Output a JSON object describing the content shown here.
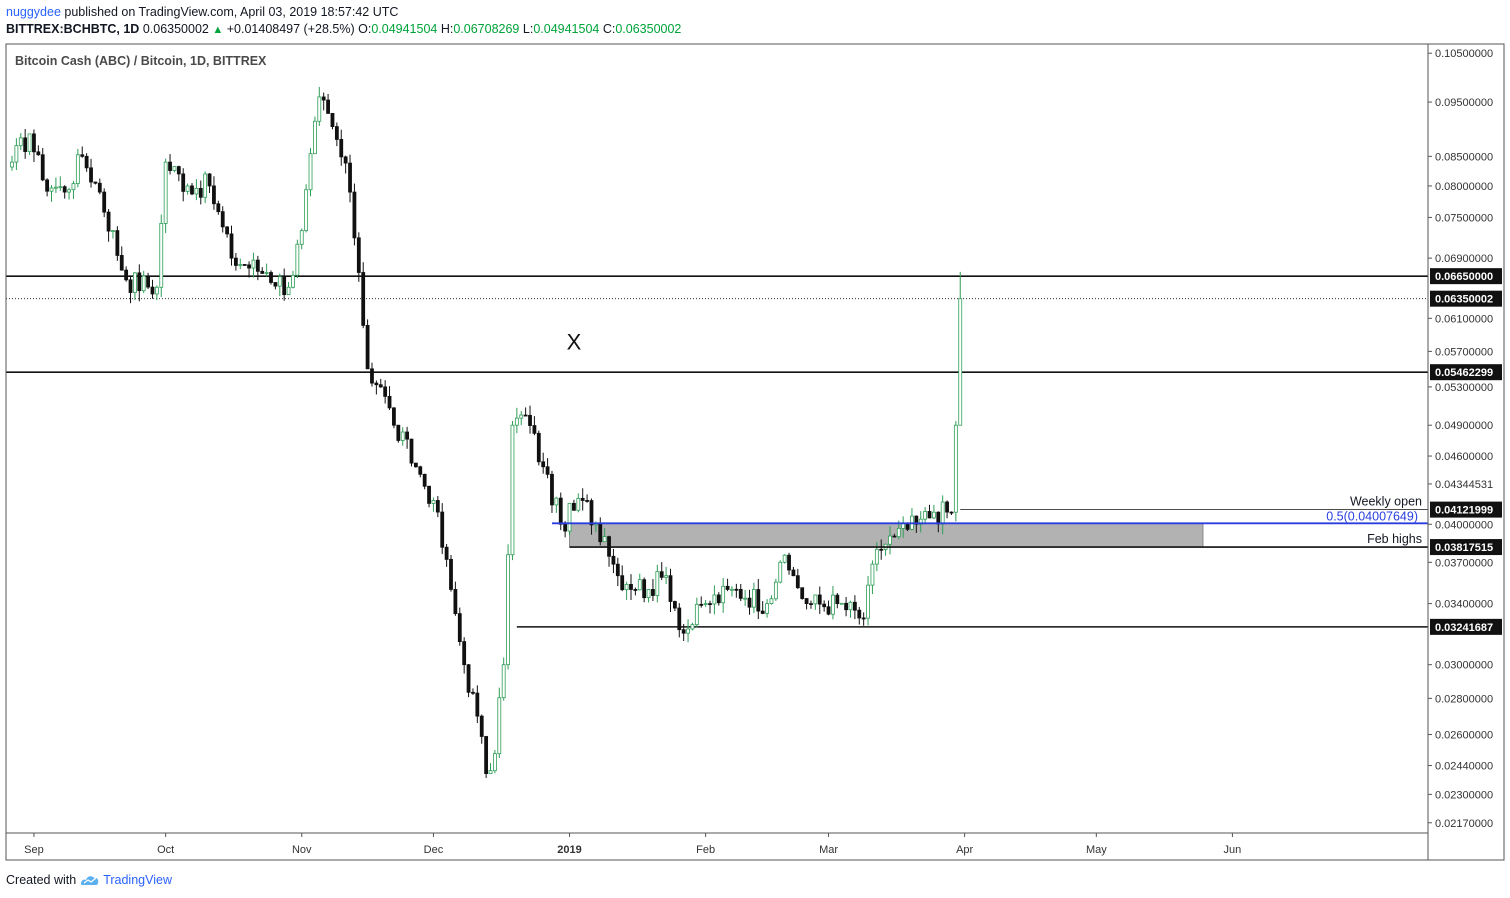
{
  "header": {
    "username": "nuggydee",
    "published": "published on TradingView.com, April 03, 2019 18:57:42 UTC",
    "symbol": "BITTREX:BCHBTC, 1D",
    "last_price": "0.06350002",
    "change": "+0.01408497 (+28.5%)",
    "open_label": "O:",
    "open": "0.04941504",
    "high_label": "H:",
    "high": "0.06708269",
    "low_label": "L:",
    "low": "0.04941504",
    "close_label": "C:",
    "close": "0.06350002"
  },
  "footer": {
    "created_with": "Created with",
    "brand": "TradingView"
  },
  "colors": {
    "up": "#2e9e57",
    "down": "#111111",
    "candle_body_up": "#ffffff",
    "fib_line": "#2a3ee0",
    "zone": "#b2b2b2",
    "accent": "#2962ff"
  },
  "chart_data": {
    "type": "candlestick",
    "title": "Bitcoin Cash (ABC) / Bitcoin, 1D, BITTREX",
    "y_scale": "log",
    "ylim": [
      0.02125,
      0.107
    ],
    "y_ticks": [
      0.105,
      0.095,
      0.085,
      0.08,
      0.075,
      0.069,
      0.061,
      0.057,
      0.053,
      0.049,
      0.046,
      0.04344531,
      0.04,
      0.037,
      0.034,
      0.03,
      0.028,
      0.026,
      0.0244,
      0.023,
      0.0217
    ],
    "y_tick_labels": [
      "0.10500000",
      "0.09500000",
      "0.08500000",
      "0.08000000",
      "0.07500000",
      "0.06900000",
      "0.06100000",
      "0.05700000",
      "0.05300000",
      "0.04900000",
      "0.04600000",
      "0.04344531",
      "0.04000000",
      "0.03700000",
      "0.03400000",
      "0.03000000",
      "0.02800000",
      "0.02600000",
      "0.02440000",
      "0.02300000",
      "0.02170000"
    ],
    "x_labels": [
      "Sep",
      "Oct",
      "Nov",
      "Dec",
      "2019",
      "Feb",
      "Mar",
      "Apr",
      "May",
      "Jun"
    ],
    "x_label_days": [
      5,
      35,
      66,
      96,
      127,
      158,
      186,
      217,
      247,
      278
    ],
    "day0": "2018-08-05",
    "levels": [
      {
        "value": 0.0665,
        "label": "0.06650000",
        "style": "solid"
      },
      {
        "value": 0.05462299,
        "label": "0.05462299",
        "style": "solid"
      },
      {
        "value": 0.03241687,
        "label": "0.03241687",
        "style": "solid"
      },
      {
        "value": 0.06350002,
        "label": "0.06350002",
        "style": "dotted",
        "note": "last price"
      }
    ],
    "annotations": [
      {
        "text": "Weekly open",
        "value": 0.04121999,
        "label": "0.04121999"
      },
      {
        "text": "0.5(0.04007649)",
        "value": 0.04007649,
        "type": "fib"
      },
      {
        "text": "Feb highs",
        "value": 0.03817515,
        "label": "0.03817515"
      },
      {
        "text": "X",
        "day": 128,
        "value": 0.0572
      }
    ],
    "support_zone": {
      "from": 0.03817515,
      "to": 0.04007649
    },
    "anchors": [
      {
        "d": 0,
        "v": 0.084
      },
      {
        "d": 4,
        "v": 0.089
      },
      {
        "d": 7,
        "v": 0.081
      },
      {
        "d": 12,
        "v": 0.079
      },
      {
        "d": 16,
        "v": 0.085
      },
      {
        "d": 20,
        "v": 0.079
      },
      {
        "d": 26,
        "v": 0.066
      },
      {
        "d": 33,
        "v": 0.065
      },
      {
        "d": 35,
        "v": 0.084
      },
      {
        "d": 40,
        "v": 0.08
      },
      {
        "d": 45,
        "v": 0.08
      },
      {
        "d": 50,
        "v": 0.069
      },
      {
        "d": 58,
        "v": 0.067
      },
      {
        "d": 63,
        "v": 0.065
      },
      {
        "d": 66,
        "v": 0.073
      },
      {
        "d": 70,
        "v": 0.096
      },
      {
        "d": 74,
        "v": 0.088
      },
      {
        "d": 77,
        "v": 0.079
      },
      {
        "d": 79,
        "v": 0.067
      },
      {
        "d": 81,
        "v": 0.055
      },
      {
        "d": 84,
        "v": 0.053
      },
      {
        "d": 87,
        "v": 0.049
      },
      {
        "d": 92,
        "v": 0.045
      },
      {
        "d": 96,
        "v": 0.042
      },
      {
        "d": 100,
        "v": 0.035
      },
      {
        "d": 103,
        "v": 0.03
      },
      {
        "d": 106,
        "v": 0.027
      },
      {
        "d": 108,
        "v": 0.024
      },
      {
        "d": 110,
        "v": 0.025
      },
      {
        "d": 112,
        "v": 0.03
      },
      {
        "d": 114,
        "v": 0.049
      },
      {
        "d": 117,
        "v": 0.05
      },
      {
        "d": 121,
        "v": 0.045
      },
      {
        "d": 125,
        "v": 0.04
      },
      {
        "d": 130,
        "v": 0.042
      },
      {
        "d": 135,
        "v": 0.039
      },
      {
        "d": 138,
        "v": 0.036
      },
      {
        "d": 145,
        "v": 0.035
      },
      {
        "d": 149,
        "v": 0.036
      },
      {
        "d": 153,
        "v": 0.032
      },
      {
        "d": 158,
        "v": 0.034
      },
      {
        "d": 165,
        "v": 0.035
      },
      {
        "d": 172,
        "v": 0.034
      },
      {
        "d": 175,
        "v": 0.037
      },
      {
        "d": 178,
        "v": 0.036
      },
      {
        "d": 181,
        "v": 0.034
      },
      {
        "d": 188,
        "v": 0.034
      },
      {
        "d": 194,
        "v": 0.033
      },
      {
        "d": 197,
        "v": 0.038
      },
      {
        "d": 201,
        "v": 0.039
      },
      {
        "d": 206,
        "v": 0.04
      },
      {
        "d": 210,
        "v": 0.041
      },
      {
        "d": 214,
        "v": 0.041
      },
      {
        "d": 215,
        "v": 0.049
      },
      {
        "d": 216,
        "v": 0.0635
      }
    ]
  }
}
